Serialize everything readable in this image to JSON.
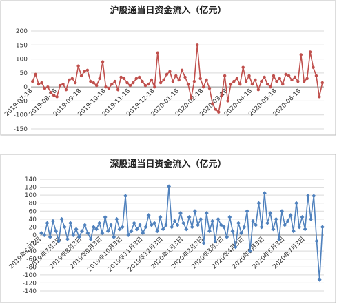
{
  "chart_data": [
    {
      "type": "line",
      "title": "沪股通当日资金流入（亿元）",
      "color": "#c0504d",
      "marker": "circle",
      "grid": true,
      "ylim": [
        -150,
        200
      ],
      "yticks": [
        -150,
        -100,
        -50,
        0,
        50,
        100,
        150,
        200
      ],
      "categories": [
        "2019-07-18",
        null,
        null,
        null,
        null,
        null,
        null,
        null,
        "2019-08-18",
        null,
        null,
        null,
        null,
        null,
        null,
        null,
        "2019-09-18",
        null,
        null,
        null,
        null,
        null,
        null,
        null,
        "2019-10-18",
        null,
        null,
        null,
        null,
        null,
        null,
        null,
        "2019-11-18",
        null,
        null,
        null,
        null,
        null,
        null,
        null,
        "2019-12-18",
        null,
        null,
        null,
        null,
        null,
        null,
        null,
        "2020-01-18",
        null,
        null,
        null,
        null,
        null,
        null,
        null,
        "2020-02-18",
        null,
        null,
        null,
        null,
        null,
        null,
        null,
        "2020-03-18",
        null,
        null,
        null,
        null,
        null,
        null,
        null,
        "2020-04-18",
        null,
        null,
        null,
        null,
        null,
        null,
        null,
        "2020-05-18",
        null,
        null,
        null,
        null,
        null,
        null,
        null,
        "2020-06-18",
        null,
        null,
        null,
        null,
        null,
        null,
        null
      ],
      "values": [
        20,
        45,
        10,
        15,
        -5,
        0,
        -20,
        -30,
        -35,
        5,
        10,
        -10,
        25,
        30,
        15,
        75,
        40,
        55,
        60,
        20,
        15,
        5,
        30,
        90,
        0,
        -5,
        10,
        20,
        -10,
        35,
        30,
        15,
        5,
        15,
        30,
        35,
        20,
        5,
        10,
        25,
        0,
        122,
        15,
        25,
        45,
        55,
        20,
        40,
        25,
        60,
        35,
        10,
        -40,
        20,
        150,
        30,
        0,
        25,
        -5,
        -60,
        -80,
        -90,
        -30,
        40,
        -50,
        10,
        20,
        30,
        10,
        70,
        20,
        40,
        10,
        25,
        -10,
        20,
        35,
        10,
        0,
        40,
        20,
        30,
        10,
        45,
        40,
        25,
        35,
        20,
        115,
        20,
        30,
        125,
        70,
        40,
        -35,
        15
      ]
    },
    {
      "type": "line",
      "title": "深股通当日资金流入（亿元）",
      "color": "#4f81bd",
      "marker": "diamond",
      "grid": true,
      "ylim": [
        -140,
        140
      ],
      "yticks": [
        -140,
        -120,
        -100,
        -80,
        -60,
        -40,
        -20,
        0,
        20,
        40,
        60,
        80,
        100,
        120,
        140
      ],
      "categories": [
        "2019年6月3日",
        null,
        null,
        null,
        null,
        null,
        null,
        "2019年7月3日",
        null,
        null,
        null,
        null,
        null,
        null,
        "2019年8月3日",
        null,
        null,
        null,
        null,
        null,
        null,
        "2019年9月3日",
        null,
        null,
        null,
        null,
        null,
        null,
        "2019年10月3日",
        null,
        null,
        null,
        null,
        null,
        null,
        "2019年11月3日",
        null,
        null,
        null,
        null,
        null,
        null,
        "2019年12月3日",
        null,
        null,
        null,
        null,
        null,
        null,
        "2020年1月3日",
        null,
        null,
        null,
        null,
        null,
        null,
        "2020年2月3日",
        null,
        null,
        null,
        null,
        null,
        null,
        "2020年3月3日",
        null,
        null,
        null,
        null,
        null,
        null,
        "2020年4月3日",
        null,
        null,
        null,
        null,
        null,
        null,
        "2020年5月3日",
        null,
        null,
        null,
        null,
        null,
        null,
        "2020年6月3日",
        null,
        null,
        null,
        null,
        null,
        null,
        "2020年7月3日",
        null,
        null,
        null,
        null,
        null,
        null
      ],
      "values": [
        5,
        0,
        30,
        -5,
        35,
        10,
        -15,
        40,
        20,
        -10,
        30,
        0,
        15,
        -5,
        10,
        25,
        5,
        -10,
        20,
        15,
        30,
        5,
        45,
        10,
        25,
        -5,
        40,
        15,
        20,
        98,
        0,
        10,
        30,
        15,
        25,
        5,
        20,
        50,
        25,
        30,
        10,
        45,
        15,
        25,
        122,
        20,
        35,
        25,
        55,
        30,
        15,
        45,
        20,
        60,
        25,
        40,
        -20,
        55,
        10,
        35,
        -15,
        40,
        25,
        20,
        -5,
        45,
        10,
        -30,
        30,
        5,
        20,
        60,
        -40,
        35,
        25,
        80,
        20,
        105,
        30,
        55,
        15,
        40,
        -10,
        60,
        25,
        35,
        50,
        10,
        80,
        20,
        45,
        15,
        98,
        40,
        98,
        -15,
        -112,
        20
      ]
    }
  ]
}
